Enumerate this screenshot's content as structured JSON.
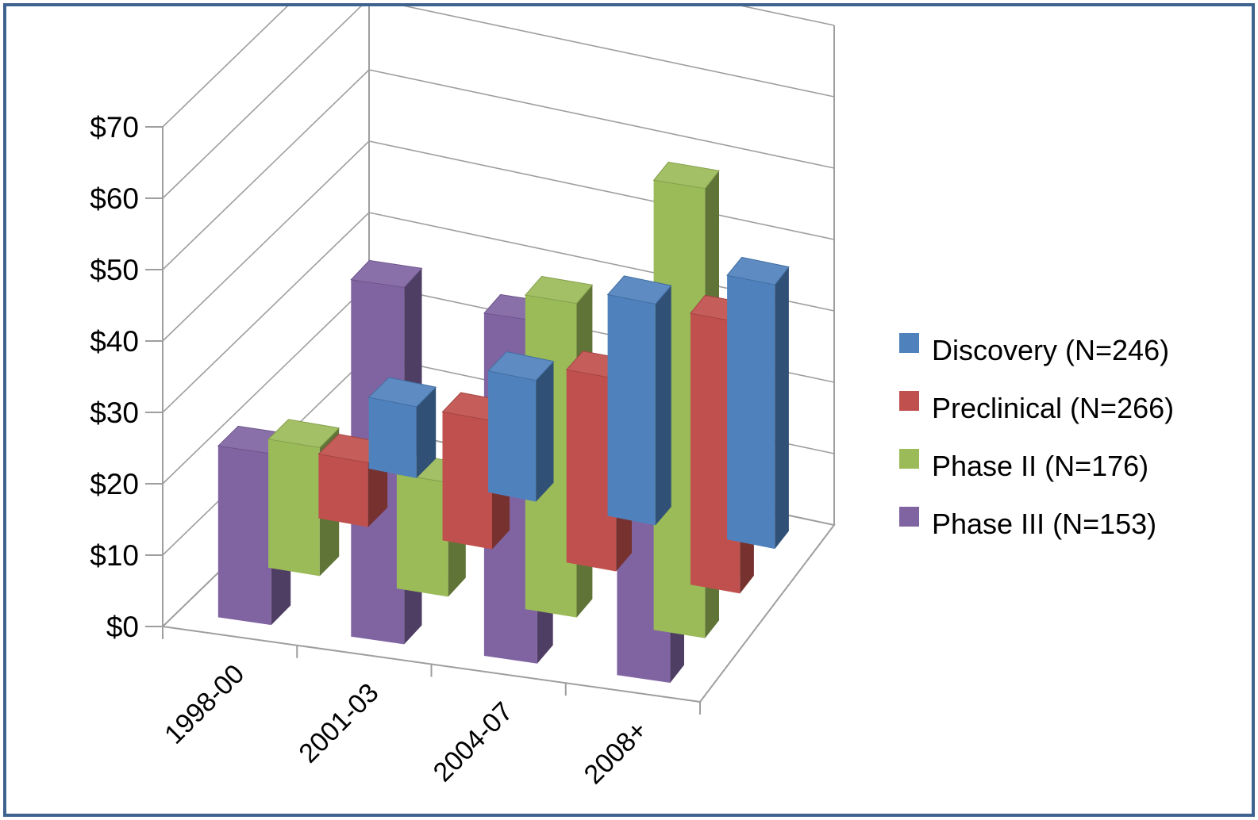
{
  "chart_data": {
    "type": "bar",
    "subtype": "3d-clustered-column",
    "title": "",
    "xlabel": "",
    "ylabel": "",
    "categories": [
      "1998-00",
      "2001-03",
      "2004-07",
      "2008+"
    ],
    "series": [
      {
        "name": "Discovery (N=246)",
        "color": "#4f81bd",
        "values": [
          10,
          17,
          31,
          37
        ]
      },
      {
        "name": "Preclinical (N=266)",
        "color": "#c0504d",
        "values": [
          9,
          18,
          27,
          38
        ]
      },
      {
        "name": "Phase II (N=176)",
        "color": "#9bbb59",
        "values": [
          18,
          16,
          44,
          63
        ]
      },
      {
        "name": "Phase III (N=153)",
        "color": "#8064a2",
        "values": [
          24,
          50,
          48,
          46
        ]
      }
    ],
    "yticks": [
      "$0",
      "$10",
      "$20",
      "$30",
      "$40",
      "$50",
      "$60",
      "$70"
    ],
    "ylim": [
      0,
      70
    ],
    "grid": true,
    "legend_position": "right"
  }
}
